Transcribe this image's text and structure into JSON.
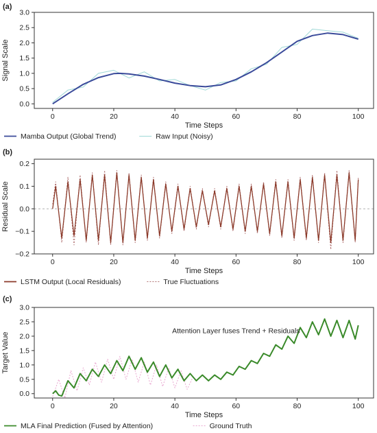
{
  "chart_data": [
    {
      "panel": "(a)",
      "type": "line",
      "xlabel": "Time Steps",
      "ylabel": "Signal Scale",
      "xlim": [
        -6,
        105
      ],
      "ylim": [
        -0.15,
        3.0
      ],
      "xticks": [
        "0",
        "20",
        "40",
        "60",
        "80",
        "100"
      ],
      "yticks": [
        "0.0",
        "0.5",
        "1.0",
        "1.5",
        "2.0",
        "2.5",
        "3.0"
      ],
      "legend": "bottom",
      "series": [
        {
          "name": "Mamba Output (Global Trend)",
          "color": "#3a4a9a",
          "x": [
            0,
            5,
            10,
            15,
            20,
            22,
            25,
            30,
            35,
            40,
            45,
            50,
            55,
            60,
            65,
            70,
            75,
            80,
            85,
            90,
            95,
            100
          ],
          "values": [
            0.0,
            0.33,
            0.64,
            0.86,
            0.99,
            1.0,
            0.98,
            0.91,
            0.8,
            0.68,
            0.6,
            0.56,
            0.62,
            0.8,
            1.05,
            1.35,
            1.7,
            2.05,
            2.24,
            2.32,
            2.27,
            2.12
          ]
        },
        {
          "name": "Raw Input (Noisy)",
          "color": "#9fd8d6",
          "x": [
            0,
            5,
            10,
            15,
            20,
            25,
            30,
            35,
            40,
            45,
            50,
            55,
            60,
            65,
            70,
            75,
            80,
            85,
            90,
            95,
            100
          ],
          "values": [
            0.05,
            0.45,
            0.55,
            1.0,
            1.1,
            0.85,
            1.05,
            0.75,
            0.8,
            0.6,
            0.45,
            0.7,
            0.75,
            1.15,
            1.3,
            1.85,
            1.95,
            2.45,
            2.4,
            2.35,
            2.15
          ]
        }
      ]
    },
    {
      "panel": "(b)",
      "type": "line",
      "xlabel": "Time Steps",
      "ylabel": "Residual Scale",
      "xlim": [
        -6,
        105
      ],
      "ylim": [
        -0.2,
        0.22
      ],
      "xticks": [
        "0",
        "20",
        "40",
        "60",
        "80",
        "100"
      ],
      "yticks": [
        "−0.2",
        "−0.1",
        "0.0",
        "0.1",
        "0.2"
      ],
      "legend": "bottom",
      "series": [
        {
          "name": "LSTM Output (Local Residuals)",
          "color": "#8b3a2a",
          "x": [
            0,
            1,
            3,
            5,
            7,
            9,
            11,
            13,
            15,
            17,
            19,
            21,
            23,
            25,
            27,
            29,
            31,
            33,
            35,
            37,
            39,
            41,
            43,
            45,
            47,
            49,
            51,
            53,
            55,
            57,
            59,
            61,
            63,
            65,
            67,
            69,
            71,
            73,
            75,
            77,
            79,
            81,
            83,
            85,
            87,
            89,
            91,
            93,
            95,
            97,
            99,
            100
          ],
          "values": [
            0.0,
            0.1,
            -0.13,
            0.12,
            -0.12,
            0.13,
            -0.14,
            0.15,
            -0.14,
            0.15,
            -0.15,
            0.16,
            -0.15,
            0.15,
            -0.14,
            0.14,
            -0.13,
            0.13,
            -0.12,
            0.11,
            -0.1,
            0.1,
            -0.09,
            0.09,
            -0.08,
            0.08,
            -0.07,
            0.08,
            -0.08,
            0.09,
            -0.09,
            0.1,
            -0.1,
            0.1,
            -0.1,
            0.11,
            -0.11,
            0.12,
            -0.12,
            0.12,
            -0.13,
            0.13,
            -0.13,
            0.14,
            -0.14,
            0.15,
            -0.15,
            0.15,
            -0.14,
            0.16,
            -0.14,
            0.13
          ]
        },
        {
          "name": "True Fluctuations",
          "color": "#b07070",
          "x": [
            0,
            1,
            3,
            5,
            7,
            9,
            11,
            13,
            15,
            17,
            19,
            21,
            23,
            25,
            27,
            29,
            31,
            33,
            35,
            37,
            39,
            41,
            43,
            45,
            47,
            49,
            51,
            53,
            55,
            57,
            59,
            61,
            63,
            65,
            67,
            69,
            71,
            73,
            75,
            77,
            79,
            81,
            83,
            85,
            87,
            89,
            91,
            93,
            95,
            97,
            99,
            100
          ],
          "values": [
            0.02,
            0.12,
            -0.15,
            0.14,
            -0.16,
            0.15,
            -0.15,
            0.16,
            -0.16,
            0.17,
            -0.16,
            0.17,
            -0.16,
            0.16,
            -0.15,
            0.15,
            -0.14,
            0.14,
            -0.13,
            0.12,
            -0.11,
            0.11,
            -0.1,
            0.1,
            -0.09,
            0.09,
            -0.08,
            0.09,
            -0.09,
            0.1,
            -0.1,
            0.11,
            -0.11,
            0.11,
            -0.11,
            0.12,
            -0.12,
            0.13,
            -0.13,
            0.13,
            -0.14,
            0.14,
            -0.14,
            0.15,
            -0.15,
            0.16,
            -0.18,
            0.17,
            -0.15,
            0.17,
            -0.15,
            0.14
          ]
        }
      ]
    },
    {
      "panel": "(c)",
      "type": "line",
      "xlabel": "Time Steps",
      "ylabel": "Target Value",
      "xlim": [
        -6,
        105
      ],
      "ylim": [
        -0.15,
        3.0
      ],
      "xticks": [
        "0",
        "20",
        "40",
        "60",
        "80",
        "100"
      ],
      "yticks": [
        "0.0",
        "0.5",
        "1.0",
        "1.5",
        "2.0",
        "2.5",
        "3.0"
      ],
      "annotation": "Attention Layer fuses Trend + Residuals",
      "annotation_x": 60,
      "annotation_y": 2.1,
      "legend": "bottom",
      "series": [
        {
          "name": "MLA Final Prediction (Fused by Attention)",
          "color": "#3a8a2a",
          "x": [
            0,
            1,
            2,
            3,
            5,
            7,
            9,
            11,
            13,
            15,
            17,
            19,
            21,
            23,
            25,
            27,
            29,
            31,
            33,
            35,
            37,
            39,
            41,
            43,
            45,
            47,
            49,
            51,
            53,
            55,
            57,
            59,
            61,
            63,
            65,
            67,
            69,
            71,
            73,
            75,
            77,
            79,
            81,
            83,
            85,
            87,
            89,
            91,
            93,
            95,
            97,
            99,
            100
          ],
          "values": [
            0.0,
            0.1,
            -0.05,
            -0.08,
            0.45,
            0.2,
            0.7,
            0.45,
            0.85,
            0.6,
            1.0,
            0.7,
            1.15,
            0.8,
            1.3,
            0.85,
            1.25,
            0.75,
            1.1,
            0.6,
            1.0,
            0.55,
            0.85,
            0.45,
            0.7,
            0.45,
            0.65,
            0.45,
            0.65,
            0.5,
            0.75,
            0.65,
            0.95,
            0.85,
            1.15,
            1.05,
            1.4,
            1.3,
            1.7,
            1.55,
            2.0,
            1.75,
            2.3,
            1.95,
            2.5,
            2.05,
            2.6,
            2.0,
            2.55,
            1.95,
            2.55,
            1.9,
            2.38
          ]
        },
        {
          "name": "Ground Truth",
          "color": "#e9a6cf",
          "x": [
            0,
            2,
            4,
            6,
            8,
            10,
            12,
            14,
            16,
            18,
            20,
            22,
            24,
            26,
            28,
            30,
            32,
            34,
            36,
            38,
            40,
            42,
            44,
            46
          ],
          "values": [
            -0.1,
            0.5,
            -0.15,
            0.8,
            0.1,
            0.9,
            0.3,
            1.1,
            0.4,
            1.2,
            0.5,
            1.3,
            0.5,
            1.2,
            0.4,
            1.1,
            0.3,
            1.0,
            0.25,
            0.9,
            0.2,
            0.8,
            0.15,
            0.6
          ]
        }
      ]
    }
  ]
}
